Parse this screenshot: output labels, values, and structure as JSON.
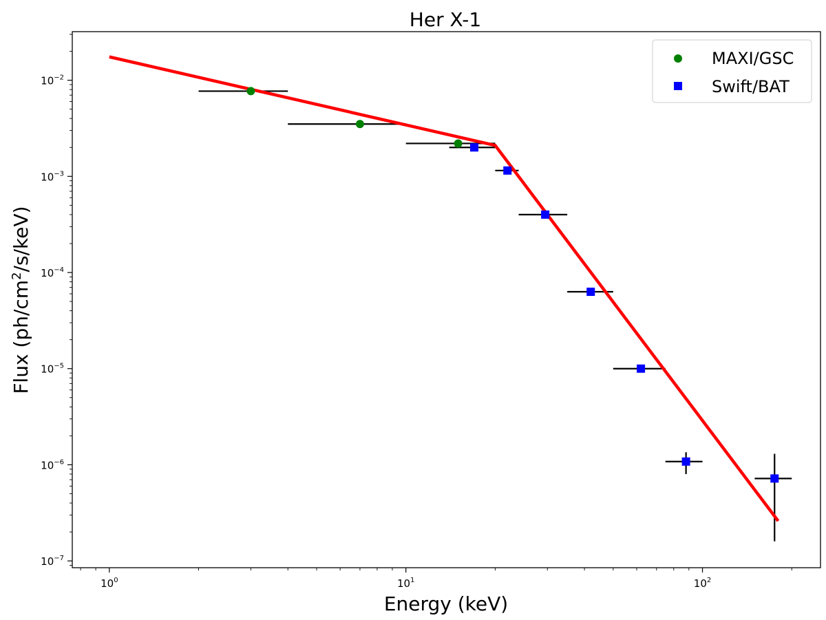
{
  "chart_data": {
    "type": "scatter",
    "title": "Her X-1",
    "xlabel": "Energy (keV)",
    "ylabel": {
      "prefix": "Flux (ph/cm",
      "sup": "2",
      "suffix": "/s/keV)"
    },
    "x_scale": "log",
    "y_scale": "log",
    "xlim": [
      0.75,
      250
    ],
    "ylim": [
      8.5e-08,
      0.032
    ],
    "x_ticks": [
      {
        "value": 1,
        "base": "10",
        "exp": "0"
      },
      {
        "value": 10,
        "base": "10",
        "exp": "1"
      },
      {
        "value": 100,
        "base": "10",
        "exp": "2"
      }
    ],
    "y_ticks": [
      {
        "value": 1e-07,
        "base": "10",
        "exp": "−7"
      },
      {
        "value": 1e-06,
        "base": "10",
        "exp": "−6"
      },
      {
        "value": 1e-05,
        "base": "10",
        "exp": "−5"
      },
      {
        "value": 0.0001,
        "base": "10",
        "exp": "−4"
      },
      {
        "value": 0.001,
        "base": "10",
        "exp": "−3"
      },
      {
        "value": 0.01,
        "base": "10",
        "exp": "−2"
      }
    ],
    "grid": false,
    "legend_position": "top-right",
    "series": [
      {
        "name": "MAXI/GSC",
        "marker": "circle",
        "color": "#008000",
        "points": [
          {
            "x": 3.0,
            "y": 0.0077,
            "xerr": [
              2.0,
              4.0
            ]
          },
          {
            "x": 7.0,
            "y": 0.0035,
            "xerr": [
              4.0,
              10.0
            ]
          },
          {
            "x": 15.0,
            "y": 0.0022,
            "xerr": [
              10.0,
              20.0
            ]
          }
        ]
      },
      {
        "name": "Swift/BAT",
        "marker": "square",
        "color": "#0000ff",
        "points": [
          {
            "x": 17.0,
            "y": 0.002,
            "xerr": [
              14.0,
              20.0
            ]
          },
          {
            "x": 22.0,
            "y": 0.00115,
            "xerr": [
              20.0,
              24.0
            ]
          },
          {
            "x": 29.5,
            "y": 0.0004,
            "xerr": [
              24.0,
              35.0
            ]
          },
          {
            "x": 42.0,
            "y": 6.3e-05,
            "xerr": [
              35.0,
              50.0
            ]
          },
          {
            "x": 62.0,
            "y": 1e-05,
            "xerr": [
              50.0,
              75.0
            ]
          },
          {
            "x": 88.0,
            "y": 1.08e-06,
            "xerr": [
              75.0,
              100.0
            ],
            "yerr": [
              8e-07,
              1.35e-06
            ]
          },
          {
            "x": 175.0,
            "y": 7.2e-07,
            "xerr": [
              150.0,
              200.0
            ],
            "yerr": [
              1.6e-07,
              1.3e-06
            ]
          }
        ]
      }
    ],
    "model_line": {
      "color": "#ff0000",
      "points": [
        {
          "x": 1.0,
          "y": 0.0175
        },
        {
          "x": 20.0,
          "y": 0.0021
        },
        {
          "x": 180.0,
          "y": 2.6e-07
        }
      ]
    }
  }
}
